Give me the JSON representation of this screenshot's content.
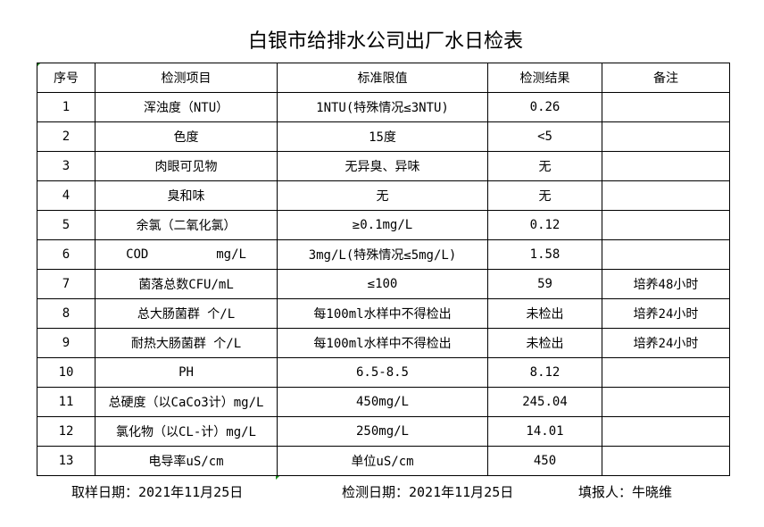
{
  "title": "白银市给排水公司出厂水日检表",
  "headers": [
    "序号",
    "检测项目",
    "标准限值",
    "检测结果",
    "备注"
  ],
  "rows": [
    [
      "1",
      "浑浊度（NTU）",
      "1NTU(特殊情况≤3NTU)",
      "0.26",
      ""
    ],
    [
      "2",
      "色度",
      "15度",
      "<5",
      ""
    ],
    [
      "3",
      "肉眼可见物",
      "无异臭、异味",
      "无",
      ""
    ],
    [
      "4",
      "臭和味",
      "无",
      "无",
      ""
    ],
    [
      "5",
      "余氯（二氧化氯）",
      "≥0.1mg/L",
      "0.12",
      ""
    ],
    [
      "6",
      "COD         mg/L",
      "3mg/L(特殊情况≤5mg/L)",
      "1.58",
      ""
    ],
    [
      "7",
      "菌落总数CFU/mL",
      "≤100",
      "59",
      "培养48小时"
    ],
    [
      "8",
      "总大肠菌群 个/L",
      "每100ml水样中不得检出",
      "未检出",
      "培养24小时"
    ],
    [
      "9",
      "耐热大肠菌群 个/L",
      "每100ml水样中不得检出",
      "未检出",
      "培养24小时"
    ],
    [
      "10",
      "PH",
      "6.5-8.5",
      "8.12",
      ""
    ],
    [
      "11",
      "总硬度（以CaCo3计）mg/L",
      "450mg/L",
      "245.04",
      ""
    ],
    [
      "12",
      "氯化物（以CL-计）mg/L",
      "250mg/L",
      "14.01",
      ""
    ],
    [
      "13",
      "电导率uS/cm",
      "单位uS/cm",
      "450",
      ""
    ]
  ],
  "footer": {
    "sample_date": "取样日期：2021年11月25日",
    "test_date": "检测日期：2021年11月25日",
    "reporter": "填报人：牛晓维"
  }
}
